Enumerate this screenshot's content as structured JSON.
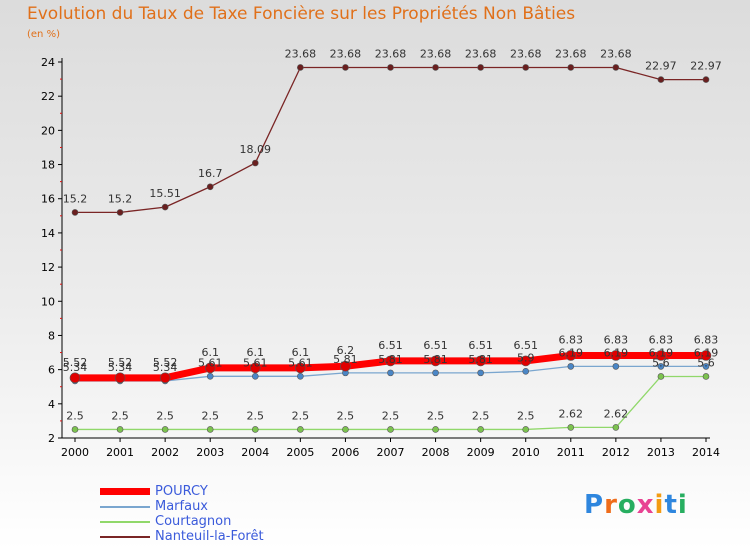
{
  "title": "Evolution du Taux de Taxe Foncière sur les Propriétés Non Bâties",
  "unit_label": "(en %)",
  "logo_text": "Proxiti",
  "colors": {
    "title": "#e0701a",
    "axis": "#000000",
    "legend_text": "#3b5bdb"
  },
  "chart_data": {
    "type": "line",
    "title": "Evolution du Taux de Taxe Foncière sur les Propriétés Non Bâties",
    "ylabel": "(en %)",
    "ylim": [
      2,
      24
    ],
    "yticks": [
      2,
      4,
      6,
      8,
      10,
      12,
      14,
      16,
      18,
      20,
      22,
      24
    ],
    "categories": [
      "2000",
      "2001",
      "2002",
      "2003",
      "2004",
      "2005",
      "2006",
      "2007",
      "2008",
      "2009",
      "2010",
      "2011",
      "2012",
      "2013",
      "2014"
    ],
    "series": [
      {
        "name": "Nanteuil-la-Forêt",
        "color": "#7a2525",
        "dotColor": "#6a1f1f",
        "width": 1.3,
        "dot": 3,
        "values": [
          15.2,
          15.2,
          15.51,
          16.7,
          18.09,
          23.68,
          23.68,
          23.68,
          23.68,
          23.68,
          23.68,
          23.68,
          23.68,
          22.97,
          22.97
        ],
        "labels": [
          "15.2",
          "15.2",
          "15.51",
          "16.7",
          "18.09",
          "23.68",
          "23.68",
          "23.68",
          "23.68",
          "23.68",
          "23.68",
          "23.68",
          "23.68",
          "22.97",
          "22.97"
        ]
      },
      {
        "name": "Courtagnon",
        "color": "#90d86a",
        "dotColor": "#7cc24f",
        "width": 1.3,
        "dot": 3,
        "values": [
          2.5,
          2.5,
          2.5,
          2.5,
          2.5,
          2.5,
          2.5,
          2.5,
          2.5,
          2.5,
          2.5,
          2.62,
          2.62,
          5.6,
          5.6
        ],
        "labels": [
          "2.5",
          "2.5",
          "2.5",
          "2.5",
          "2.5",
          "2.5",
          "2.5",
          "2.5",
          "2.5",
          "2.5",
          "2.5",
          "2.62",
          "2.62",
          "5.6",
          "5.6"
        ]
      },
      {
        "name": "Marfaux",
        "color": "#7aa6cf",
        "dotColor": "#4a86c6",
        "width": 1.3,
        "dot": 3,
        "values": [
          5.34,
          5.34,
          5.34,
          5.61,
          5.61,
          5.61,
          5.81,
          5.81,
          5.81,
          5.81,
          5.9,
          6.19,
          6.19,
          6.19,
          6.19
        ],
        "labels": [
          "5.34",
          "5.34",
          "5.34",
          "5.61",
          "5.61",
          "5.61",
          "5.81",
          "5.81",
          "5.81",
          "5.81",
          "5.9",
          "6.19",
          "6.19",
          "6.19",
          "6.19"
        ]
      },
      {
        "name": "POURCY",
        "color": "#ff0000",
        "dotColor": "#e00000",
        "width": 7,
        "dot": 5,
        "values": [
          5.52,
          5.52,
          5.52,
          6.1,
          6.1,
          6.1,
          6.2,
          6.51,
          6.51,
          6.51,
          6.51,
          6.83,
          6.83,
          6.83,
          6.83
        ],
        "labels": [
          "5.52",
          "5.52",
          "5.52",
          "6.1",
          "6.1",
          "6.1",
          "6.2",
          "6.51",
          "6.51",
          "6.51",
          "6.51",
          "6.83",
          "6.83",
          "6.83",
          "6.83"
        ]
      }
    ],
    "legend": [
      "POURCY",
      "Marfaux",
      "Courtagnon",
      "Nanteuil-la-Forêt"
    ]
  }
}
